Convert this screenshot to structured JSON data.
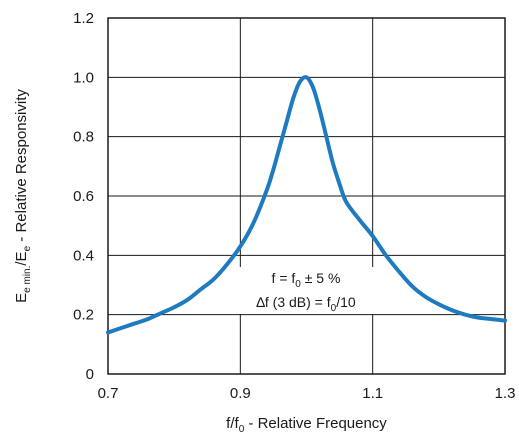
{
  "chart_data": {
    "type": "line",
    "title": "",
    "xlabel": {
      "prefix": "f/f",
      "sub": "0",
      "suffix": " - Relative Frequency"
    },
    "ylabel": {
      "prefix": "E",
      "sub1": "e min.",
      "mid": "/E",
      "sub2": "e",
      "suffix": " - Relative Responsivity"
    },
    "xlim": [
      0.7,
      1.3
    ],
    "ylim": [
      0,
      1.2
    ],
    "x_ticks": [
      0.7,
      0.9,
      1.1,
      1.3
    ],
    "x_tick_labels": [
      "0.7",
      "0.9",
      "1.1",
      "1.3"
    ],
    "y_ticks": [
      0,
      0.2,
      0.4,
      0.6,
      0.8,
      1.0,
      1.2
    ],
    "y_tick_labels": [
      "0",
      "0.2",
      "0.4",
      "0.6",
      "0.8",
      "1.0",
      "1.2"
    ],
    "grid": true,
    "line_color": "#1f7bbf",
    "annotation": {
      "line1": {
        "prefix": "f = f",
        "sub": "0",
        "suffix": " ± 5 %"
      },
      "line2": {
        "prefix": "∆f (3 dB) = f",
        "sub": "0",
        "suffix": "/10"
      }
    },
    "series": [
      {
        "x": [
          0.7,
          0.72,
          0.74,
          0.76,
          0.78,
          0.8,
          0.82,
          0.84,
          0.86,
          0.88,
          0.9,
          0.92,
          0.94,
          0.95,
          0.96,
          0.97,
          0.98,
          0.99,
          1.0,
          1.01,
          1.02,
          1.03,
          1.04,
          1.05,
          1.06,
          1.08,
          1.1,
          1.12,
          1.14,
          1.16,
          1.18,
          1.2,
          1.22,
          1.24,
          1.26,
          1.28,
          1.3
        ],
        "y": [
          0.14,
          0.155,
          0.17,
          0.185,
          0.205,
          0.225,
          0.25,
          0.285,
          0.32,
          0.37,
          0.43,
          0.51,
          0.62,
          0.69,
          0.77,
          0.85,
          0.93,
          0.985,
          1.0,
          0.965,
          0.89,
          0.8,
          0.71,
          0.64,
          0.58,
          0.52,
          0.465,
          0.4,
          0.345,
          0.295,
          0.26,
          0.235,
          0.215,
          0.2,
          0.19,
          0.185,
          0.18
        ]
      }
    ]
  }
}
